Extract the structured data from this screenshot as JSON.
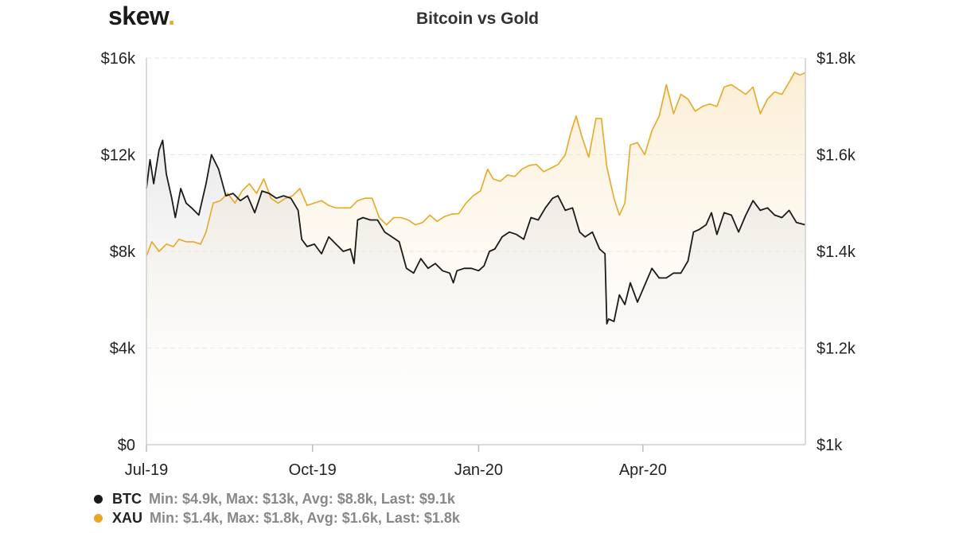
{
  "logo": {
    "text": "skew",
    "dot": "."
  },
  "chart_data": {
    "type": "line",
    "title": "Bitcoin vs Gold",
    "x_ticks": [
      "Jul-19",
      "Oct-19",
      "Jan-20",
      "Apr-20"
    ],
    "x_range": [
      "2019-07-01",
      "2020-06-30"
    ],
    "y_left": {
      "range": [
        0,
        16000
      ],
      "ticks": [
        "$0",
        "$4k",
        "$8k",
        "$12k",
        "$16k"
      ]
    },
    "y_right": {
      "range": [
        1000,
        1800
      ],
      "ticks": [
        "$1k",
        "$1.2k",
        "$1.4k",
        "$1.6k",
        "$1.8k"
      ]
    },
    "grid": true,
    "legend_position": "bottom-left",
    "series": [
      {
        "name": "BTC",
        "axis": "left",
        "color": "#1a1a1a",
        "stats": "Min: $4.9k, Max: $13k, Avg: $8.8k, Last: $9.1k",
        "points": [
          [
            "2019-07-01",
            10600
          ],
          [
            "2019-07-03",
            11800
          ],
          [
            "2019-07-05",
            10800
          ],
          [
            "2019-07-08",
            12200
          ],
          [
            "2019-07-10",
            12600
          ],
          [
            "2019-07-12",
            11200
          ],
          [
            "2019-07-15",
            10200
          ],
          [
            "2019-07-17",
            9400
          ],
          [
            "2019-07-20",
            10600
          ],
          [
            "2019-07-23",
            10000
          ],
          [
            "2019-07-26",
            9800
          ],
          [
            "2019-07-30",
            9500
          ],
          [
            "2019-08-03",
            10800
          ],
          [
            "2019-08-06",
            12000
          ],
          [
            "2019-08-10",
            11400
          ],
          [
            "2019-08-14",
            10300
          ],
          [
            "2019-08-18",
            10400
          ],
          [
            "2019-08-22",
            10100
          ],
          [
            "2019-08-26",
            10300
          ],
          [
            "2019-08-30",
            9600
          ],
          [
            "2019-09-03",
            10500
          ],
          [
            "2019-09-07",
            10400
          ],
          [
            "2019-09-11",
            10200
          ],
          [
            "2019-09-15",
            10300
          ],
          [
            "2019-09-19",
            10200
          ],
          [
            "2019-09-23",
            9700
          ],
          [
            "2019-09-25",
            8500
          ],
          [
            "2019-09-28",
            8200
          ],
          [
            "2019-10-02",
            8300
          ],
          [
            "2019-10-06",
            7900
          ],
          [
            "2019-10-10",
            8600
          ],
          [
            "2019-10-14",
            8300
          ],
          [
            "2019-10-18",
            8000
          ],
          [
            "2019-10-22",
            8100
          ],
          [
            "2019-10-24",
            7500
          ],
          [
            "2019-10-26",
            9300
          ],
          [
            "2019-10-29",
            9400
          ],
          [
            "2019-11-02",
            9300
          ],
          [
            "2019-11-06",
            9300
          ],
          [
            "2019-11-10",
            8800
          ],
          [
            "2019-11-14",
            8600
          ],
          [
            "2019-11-18",
            8400
          ],
          [
            "2019-11-22",
            7300
          ],
          [
            "2019-11-26",
            7100
          ],
          [
            "2019-11-30",
            7700
          ],
          [
            "2019-12-04",
            7300
          ],
          [
            "2019-12-08",
            7500
          ],
          [
            "2019-12-12",
            7200
          ],
          [
            "2019-12-16",
            7100
          ],
          [
            "2019-12-18",
            6700
          ],
          [
            "2019-12-20",
            7200
          ],
          [
            "2019-12-24",
            7300
          ],
          [
            "2019-12-28",
            7300
          ],
          [
            "2020-01-01",
            7200
          ],
          [
            "2020-01-04",
            7400
          ],
          [
            "2020-01-07",
            8000
          ],
          [
            "2020-01-10",
            8100
          ],
          [
            "2020-01-14",
            8600
          ],
          [
            "2020-01-18",
            8800
          ],
          [
            "2020-01-22",
            8700
          ],
          [
            "2020-01-26",
            8500
          ],
          [
            "2020-01-30",
            9400
          ],
          [
            "2020-02-03",
            9300
          ],
          [
            "2020-02-07",
            9800
          ],
          [
            "2020-02-11",
            10200
          ],
          [
            "2020-02-14",
            10300
          ],
          [
            "2020-02-18",
            9700
          ],
          [
            "2020-02-22",
            9800
          ],
          [
            "2020-02-26",
            8800
          ],
          [
            "2020-02-29",
            8600
          ],
          [
            "2020-03-04",
            8800
          ],
          [
            "2020-03-08",
            8100
          ],
          [
            "2020-03-11",
            7900
          ],
          [
            "2020-03-12",
            5000
          ],
          [
            "2020-03-13",
            5200
          ],
          [
            "2020-03-16",
            5100
          ],
          [
            "2020-03-19",
            6200
          ],
          [
            "2020-03-22",
            5800
          ],
          [
            "2020-03-25",
            6700
          ],
          [
            "2020-03-29",
            5900
          ],
          [
            "2020-04-02",
            6600
          ],
          [
            "2020-04-06",
            7300
          ],
          [
            "2020-04-10",
            6900
          ],
          [
            "2020-04-14",
            6900
          ],
          [
            "2020-04-18",
            7100
          ],
          [
            "2020-04-22",
            7100
          ],
          [
            "2020-04-26",
            7600
          ],
          [
            "2020-04-29",
            8800
          ],
          [
            "2020-05-02",
            8900
          ],
          [
            "2020-05-06",
            9100
          ],
          [
            "2020-05-09",
            9600
          ],
          [
            "2020-05-12",
            8700
          ],
          [
            "2020-05-16",
            9600
          ],
          [
            "2020-05-20",
            9500
          ],
          [
            "2020-05-24",
            8800
          ],
          [
            "2020-05-28",
            9500
          ],
          [
            "2020-06-01",
            10100
          ],
          [
            "2020-06-05",
            9700
          ],
          [
            "2020-06-09",
            9800
          ],
          [
            "2020-06-13",
            9500
          ],
          [
            "2020-06-17",
            9400
          ],
          [
            "2020-06-21",
            9700
          ],
          [
            "2020-06-25",
            9200
          ],
          [
            "2020-06-30",
            9100
          ]
        ]
      },
      {
        "name": "XAU",
        "axis": "right",
        "color": "#e8a825",
        "stats": "Min: $1.4k, Max: $1.8k, Avg: $1.6k, Last: $1.8k",
        "points": [
          [
            "2019-07-01",
            1390
          ],
          [
            "2019-07-04",
            1420
          ],
          [
            "2019-07-08",
            1400
          ],
          [
            "2019-07-12",
            1415
          ],
          [
            "2019-07-16",
            1410
          ],
          [
            "2019-07-19",
            1425
          ],
          [
            "2019-07-23",
            1420
          ],
          [
            "2019-07-27",
            1420
          ],
          [
            "2019-07-31",
            1415
          ],
          [
            "2019-08-03",
            1440
          ],
          [
            "2019-08-07",
            1500
          ],
          [
            "2019-08-11",
            1505
          ],
          [
            "2019-08-15",
            1520
          ],
          [
            "2019-08-19",
            1500
          ],
          [
            "2019-08-23",
            1525
          ],
          [
            "2019-08-27",
            1540
          ],
          [
            "2019-08-31",
            1520
          ],
          [
            "2019-09-04",
            1550
          ],
          [
            "2019-09-08",
            1510
          ],
          [
            "2019-09-12",
            1500
          ],
          [
            "2019-09-16",
            1510
          ],
          [
            "2019-09-20",
            1515
          ],
          [
            "2019-09-24",
            1530
          ],
          [
            "2019-09-28",
            1495
          ],
          [
            "2019-10-02",
            1500
          ],
          [
            "2019-10-06",
            1505
          ],
          [
            "2019-10-10",
            1495
          ],
          [
            "2019-10-14",
            1490
          ],
          [
            "2019-10-18",
            1490
          ],
          [
            "2019-10-22",
            1490
          ],
          [
            "2019-10-26",
            1505
          ],
          [
            "2019-10-30",
            1510
          ],
          [
            "2019-11-03",
            1510
          ],
          [
            "2019-11-07",
            1470
          ],
          [
            "2019-11-11",
            1455
          ],
          [
            "2019-11-15",
            1470
          ],
          [
            "2019-11-19",
            1470
          ],
          [
            "2019-11-23",
            1465
          ],
          [
            "2019-11-27",
            1455
          ],
          [
            "2019-12-01",
            1460
          ],
          [
            "2019-12-05",
            1475
          ],
          [
            "2019-12-09",
            1462
          ],
          [
            "2019-12-13",
            1472
          ],
          [
            "2019-12-17",
            1477
          ],
          [
            "2019-12-21",
            1478
          ],
          [
            "2019-12-25",
            1500
          ],
          [
            "2019-12-29",
            1515
          ],
          [
            "2020-01-02",
            1525
          ],
          [
            "2020-01-06",
            1570
          ],
          [
            "2020-01-09",
            1550
          ],
          [
            "2020-01-13",
            1545
          ],
          [
            "2020-01-17",
            1558
          ],
          [
            "2020-01-21",
            1555
          ],
          [
            "2020-01-25",
            1570
          ],
          [
            "2020-01-29",
            1578
          ],
          [
            "2020-02-02",
            1580
          ],
          [
            "2020-02-06",
            1565
          ],
          [
            "2020-02-10",
            1572
          ],
          [
            "2020-02-14",
            1580
          ],
          [
            "2020-02-18",
            1600
          ],
          [
            "2020-02-21",
            1645
          ],
          [
            "2020-02-24",
            1680
          ],
          [
            "2020-02-27",
            1640
          ],
          [
            "2020-03-02",
            1595
          ],
          [
            "2020-03-06",
            1675
          ],
          [
            "2020-03-09",
            1675
          ],
          [
            "2020-03-12",
            1575
          ],
          [
            "2020-03-16",
            1510
          ],
          [
            "2020-03-19",
            1475
          ],
          [
            "2020-03-22",
            1500
          ],
          [
            "2020-03-25",
            1620
          ],
          [
            "2020-03-29",
            1625
          ],
          [
            "2020-04-02",
            1600
          ],
          [
            "2020-04-06",
            1650
          ],
          [
            "2020-04-10",
            1680
          ],
          [
            "2020-04-14",
            1745
          ],
          [
            "2020-04-18",
            1685
          ],
          [
            "2020-04-22",
            1725
          ],
          [
            "2020-04-26",
            1715
          ],
          [
            "2020-04-30",
            1690
          ],
          [
            "2020-05-04",
            1700
          ],
          [
            "2020-05-08",
            1705
          ],
          [
            "2020-05-12",
            1700
          ],
          [
            "2020-05-16",
            1740
          ],
          [
            "2020-05-20",
            1745
          ],
          [
            "2020-05-24",
            1735
          ],
          [
            "2020-05-28",
            1725
          ],
          [
            "2020-06-01",
            1740
          ],
          [
            "2020-06-05",
            1685
          ],
          [
            "2020-06-09",
            1715
          ],
          [
            "2020-06-13",
            1730
          ],
          [
            "2020-06-17",
            1725
          ],
          [
            "2020-06-21",
            1750
          ],
          [
            "2020-06-24",
            1770
          ],
          [
            "2020-06-27",
            1765
          ],
          [
            "2020-06-30",
            1770
          ]
        ]
      }
    ]
  }
}
